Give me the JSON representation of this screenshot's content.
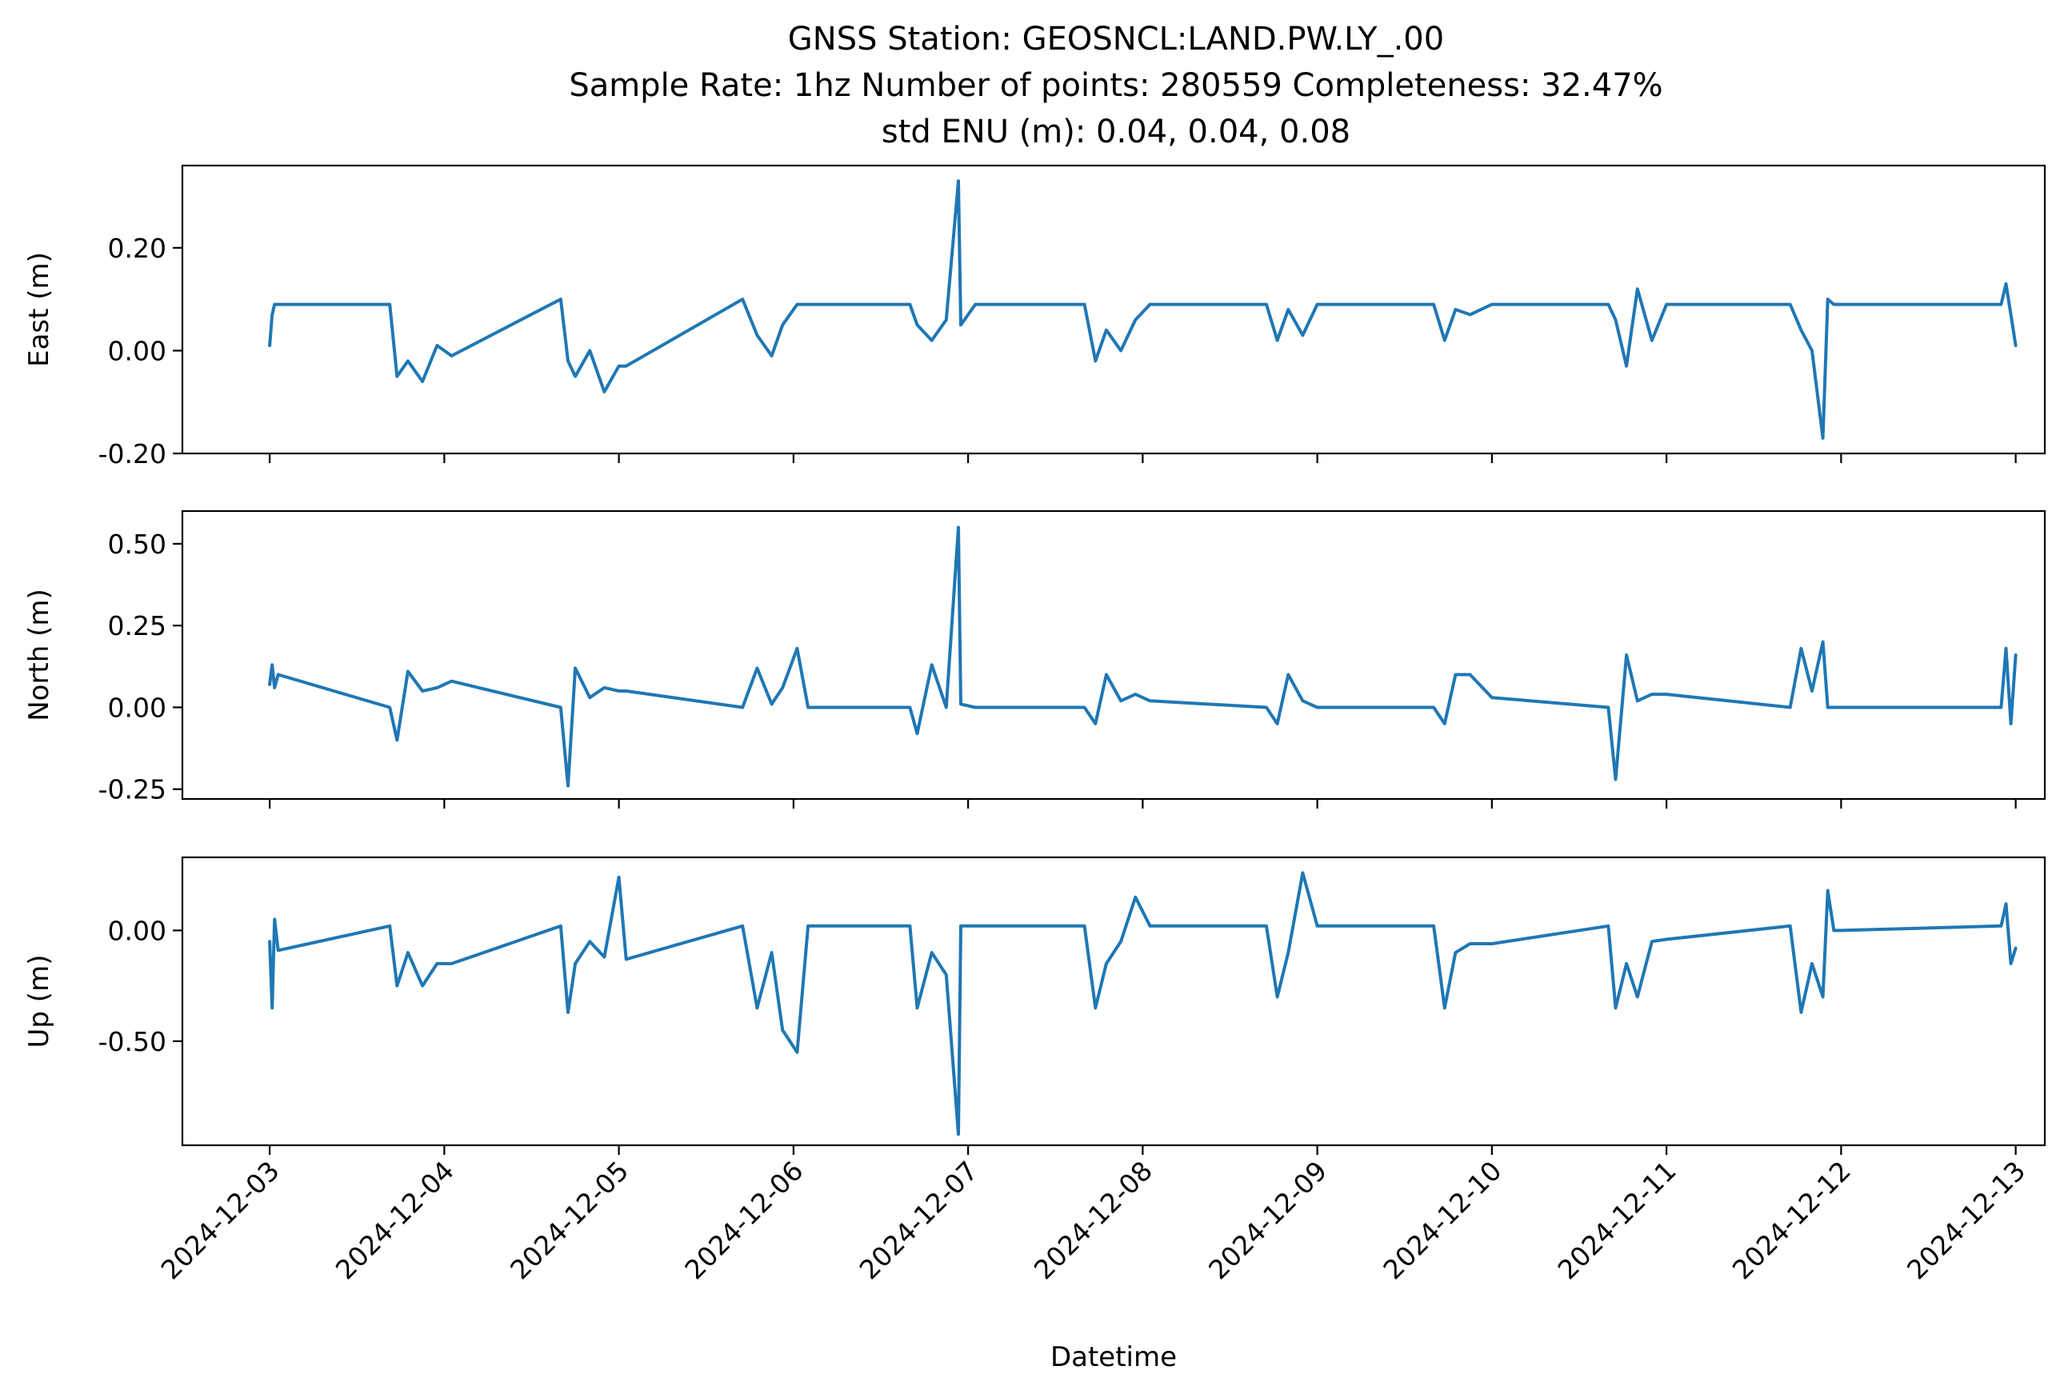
{
  "title": {
    "line1": "GNSS Station: GEOSNCL:LAND.PW.LY_.00",
    "line2": "Sample Rate: 1hz   Number of points: 280559    Completeness:  32.47%",
    "line3": "std ENU (m):  0.04, 0.04, 0.08"
  },
  "colors": {
    "series": "#1f77b4",
    "axes": "#000000",
    "background": "#ffffff"
  },
  "chart_data": [
    {
      "type": "line",
      "ylabel": "East (m)",
      "xlabel": "",
      "xlim": [
        "2024-12-02T12:00",
        "2024-12-13T04:00"
      ],
      "ylim": [
        -0.2,
        0.36
      ],
      "yticks": [
        {
          "value": -0.2,
          "label": "-0.20"
        },
        {
          "value": 0.0,
          "label": "0.00"
        },
        {
          "value": 0.2,
          "label": "0.20"
        }
      ],
      "series": [
        {
          "x": [
            "2024-12-03T00:00",
            "2024-12-03T00:20",
            "2024-12-03T00:40",
            "2024-12-03T01:10",
            "2024-12-03T16:30",
            "2024-12-03T17:30",
            "2024-12-03T19:00",
            "2024-12-03T21:00",
            "2024-12-03T23:00",
            "2024-12-04T01:00",
            "2024-12-04T16:00",
            "2024-12-04T17:00",
            "2024-12-04T18:00",
            "2024-12-04T20:00",
            "2024-12-04T22:00",
            "2024-12-05T00:00",
            "2024-12-05T01:00",
            "2024-12-05T17:00",
            "2024-12-05T19:00",
            "2024-12-05T21:00",
            "2024-12-05T22:30",
            "2024-12-06T00:30",
            "2024-12-06T02:00",
            "2024-12-06T16:00",
            "2024-12-06T17:00",
            "2024-12-06T19:00",
            "2024-12-06T21:00",
            "2024-12-06T22:40",
            "2024-12-06T23:00",
            "2024-12-07T01:00",
            "2024-12-07T16:00",
            "2024-12-07T17:30",
            "2024-12-07T19:00",
            "2024-12-07T21:00",
            "2024-12-07T23:00",
            "2024-12-08T01:00",
            "2024-12-08T17:00",
            "2024-12-08T18:30",
            "2024-12-08T20:00",
            "2024-12-08T22:00",
            "2024-12-09T00:00",
            "2024-12-09T16:00",
            "2024-12-09T17:30",
            "2024-12-09T19:00",
            "2024-12-09T21:00",
            "2024-12-10T00:00",
            "2024-12-10T16:00",
            "2024-12-10T17:00",
            "2024-12-10T18:30",
            "2024-12-10T20:00",
            "2024-12-10T22:00",
            "2024-12-11T00:00",
            "2024-12-11T17:00",
            "2024-12-11T18:30",
            "2024-12-11T20:00",
            "2024-12-11T21:30",
            "2024-12-11T22:10",
            "2024-12-11T23:00",
            "2024-12-12T00:00",
            "2024-12-12T22:00",
            "2024-12-12T22:40",
            "2024-12-12T23:20",
            "2024-12-13T00:00"
          ],
          "y": [
            0.01,
            0.07,
            0.09,
            0.09,
            0.09,
            -0.05,
            -0.02,
            -0.06,
            0.01,
            -0.01,
            0.1,
            -0.02,
            -0.05,
            0.0,
            -0.08,
            -0.03,
            -0.03,
            0.1,
            0.03,
            -0.01,
            0.05,
            0.09,
            0.09,
            0.09,
            0.05,
            0.02,
            0.06,
            0.33,
            0.05,
            0.09,
            0.09,
            -0.02,
            0.04,
            0.0,
            0.06,
            0.09,
            0.09,
            0.02,
            0.08,
            0.03,
            0.09,
            0.09,
            0.02,
            0.08,
            0.07,
            0.09,
            0.09,
            0.06,
            -0.03,
            0.12,
            0.02,
            0.09,
            0.09,
            0.04,
            0.0,
            -0.17,
            0.1,
            0.09,
            0.09,
            0.09,
            0.13,
            0.07,
            0.01
          ]
        }
      ]
    },
    {
      "type": "line",
      "ylabel": "North (m)",
      "xlabel": "",
      "xlim": [
        "2024-12-02T12:00",
        "2024-12-13T04:00"
      ],
      "ylim": [
        -0.28,
        0.6
      ],
      "yticks": [
        {
          "value": -0.25,
          "label": "-0.25"
        },
        {
          "value": 0.0,
          "label": "0.00"
        },
        {
          "value": 0.25,
          "label": "0.25"
        },
        {
          "value": 0.5,
          "label": "0.50"
        }
      ],
      "series": [
        {
          "x": [
            "2024-12-03T00:00",
            "2024-12-03T00:20",
            "2024-12-03T00:40",
            "2024-12-03T01:10",
            "2024-12-03T16:30",
            "2024-12-03T17:30",
            "2024-12-03T19:00",
            "2024-12-03T21:00",
            "2024-12-03T23:00",
            "2024-12-04T01:00",
            "2024-12-04T16:00",
            "2024-12-04T17:00",
            "2024-12-04T18:00",
            "2024-12-04T20:00",
            "2024-12-04T22:00",
            "2024-12-05T00:00",
            "2024-12-05T01:00",
            "2024-12-05T17:00",
            "2024-12-05T19:00",
            "2024-12-05T21:00",
            "2024-12-05T22:30",
            "2024-12-06T00:30",
            "2024-12-06T02:00",
            "2024-12-06T16:00",
            "2024-12-06T17:00",
            "2024-12-06T19:00",
            "2024-12-06T21:00",
            "2024-12-06T22:40",
            "2024-12-06T23:00",
            "2024-12-07T01:00",
            "2024-12-07T16:00",
            "2024-12-07T17:30",
            "2024-12-07T19:00",
            "2024-12-07T21:00",
            "2024-12-07T23:00",
            "2024-12-08T01:00",
            "2024-12-08T17:00",
            "2024-12-08T18:30",
            "2024-12-08T20:00",
            "2024-12-08T22:00",
            "2024-12-09T00:00",
            "2024-12-09T16:00",
            "2024-12-09T17:30",
            "2024-12-09T19:00",
            "2024-12-09T21:00",
            "2024-12-10T00:00",
            "2024-12-10T16:00",
            "2024-12-10T17:00",
            "2024-12-10T18:30",
            "2024-12-10T20:00",
            "2024-12-10T22:00",
            "2024-12-11T00:00",
            "2024-12-11T17:00",
            "2024-12-11T18:30",
            "2024-12-11T20:00",
            "2024-12-11T21:30",
            "2024-12-11T22:10",
            "2024-12-11T23:00",
            "2024-12-12T00:00",
            "2024-12-12T22:00",
            "2024-12-12T22:40",
            "2024-12-12T23:20",
            "2024-12-13T00:00"
          ],
          "y": [
            0.07,
            0.13,
            0.06,
            0.1,
            0.0,
            -0.1,
            0.11,
            0.05,
            0.06,
            0.08,
            0.0,
            -0.24,
            0.12,
            0.03,
            0.06,
            0.05,
            0.05,
            0.0,
            0.12,
            0.01,
            0.06,
            0.18,
            0.0,
            0.0,
            -0.08,
            0.13,
            0.0,
            0.55,
            0.01,
            0.0,
            0.0,
            -0.05,
            0.1,
            0.02,
            0.04,
            0.02,
            0.0,
            -0.05,
            0.1,
            0.02,
            0.0,
            0.0,
            -0.05,
            0.1,
            0.1,
            0.03,
            0.0,
            -0.22,
            0.16,
            0.02,
            0.04,
            0.04,
            0.0,
            0.18,
            0.05,
            0.2,
            0.0,
            0.0,
            0.0,
            0.0,
            0.18,
            -0.05,
            0.16
          ]
        }
      ]
    },
    {
      "type": "line",
      "ylabel": "Up (m)",
      "xlabel": "Datetime",
      "xlim": [
        "2024-12-02T12:00",
        "2024-12-13T04:00"
      ],
      "ylim": [
        -0.97,
        0.33
      ],
      "yticks": [
        {
          "value": -0.5,
          "label": "-0.50"
        },
        {
          "value": 0.0,
          "label": "0.00"
        }
      ],
      "xticks": [
        "2024-12-03",
        "2024-12-04",
        "2024-12-05",
        "2024-12-06",
        "2024-12-07",
        "2024-12-08",
        "2024-12-09",
        "2024-12-10",
        "2024-12-11",
        "2024-12-12",
        "2024-12-13"
      ],
      "series": [
        {
          "x": [
            "2024-12-03T00:00",
            "2024-12-03T00:20",
            "2024-12-03T00:40",
            "2024-12-03T01:10",
            "2024-12-03T16:30",
            "2024-12-03T17:30",
            "2024-12-03T19:00",
            "2024-12-03T21:00",
            "2024-12-03T23:00",
            "2024-12-04T01:00",
            "2024-12-04T16:00",
            "2024-12-04T17:00",
            "2024-12-04T18:00",
            "2024-12-04T20:00",
            "2024-12-04T22:00",
            "2024-12-05T00:00",
            "2024-12-05T01:00",
            "2024-12-05T17:00",
            "2024-12-05T19:00",
            "2024-12-05T21:00",
            "2024-12-05T22:30",
            "2024-12-06T00:30",
            "2024-12-06T02:00",
            "2024-12-06T16:00",
            "2024-12-06T17:00",
            "2024-12-06T19:00",
            "2024-12-06T21:00",
            "2024-12-06T22:40",
            "2024-12-06T23:00",
            "2024-12-07T01:00",
            "2024-12-07T16:00",
            "2024-12-07T17:30",
            "2024-12-07T19:00",
            "2024-12-07T21:00",
            "2024-12-07T23:00",
            "2024-12-08T01:00",
            "2024-12-08T17:00",
            "2024-12-08T18:30",
            "2024-12-08T20:00",
            "2024-12-08T22:00",
            "2024-12-09T00:00",
            "2024-12-09T16:00",
            "2024-12-09T17:30",
            "2024-12-09T19:00",
            "2024-12-09T21:00",
            "2024-12-10T00:00",
            "2024-12-10T16:00",
            "2024-12-10T17:00",
            "2024-12-10T18:30",
            "2024-12-10T20:00",
            "2024-12-10T22:00",
            "2024-12-11T00:00",
            "2024-12-11T17:00",
            "2024-12-11T18:30",
            "2024-12-11T20:00",
            "2024-12-11T21:30",
            "2024-12-11T22:10",
            "2024-12-11T23:00",
            "2024-12-12T00:00",
            "2024-12-12T22:00",
            "2024-12-12T22:40",
            "2024-12-12T23:20",
            "2024-12-13T00:00"
          ],
          "y": [
            -0.05,
            -0.35,
            0.05,
            -0.09,
            0.02,
            -0.25,
            -0.1,
            -0.25,
            -0.15,
            -0.15,
            0.02,
            -0.37,
            -0.15,
            -0.05,
            -0.12,
            0.24,
            -0.13,
            0.02,
            -0.35,
            -0.1,
            -0.45,
            -0.55,
            0.02,
            0.02,
            -0.35,
            -0.1,
            -0.2,
            -0.92,
            0.02,
            0.02,
            0.02,
            -0.35,
            -0.15,
            -0.05,
            0.15,
            0.02,
            0.02,
            -0.3,
            -0.1,
            0.26,
            0.02,
            0.02,
            -0.35,
            -0.1,
            -0.06,
            -0.06,
            0.02,
            -0.35,
            -0.15,
            -0.3,
            -0.05,
            -0.04,
            0.02,
            -0.37,
            -0.15,
            -0.3,
            0.18,
            0.0,
            0.0,
            0.02,
            0.12,
            -0.15,
            -0.08
          ]
        }
      ]
    }
  ]
}
